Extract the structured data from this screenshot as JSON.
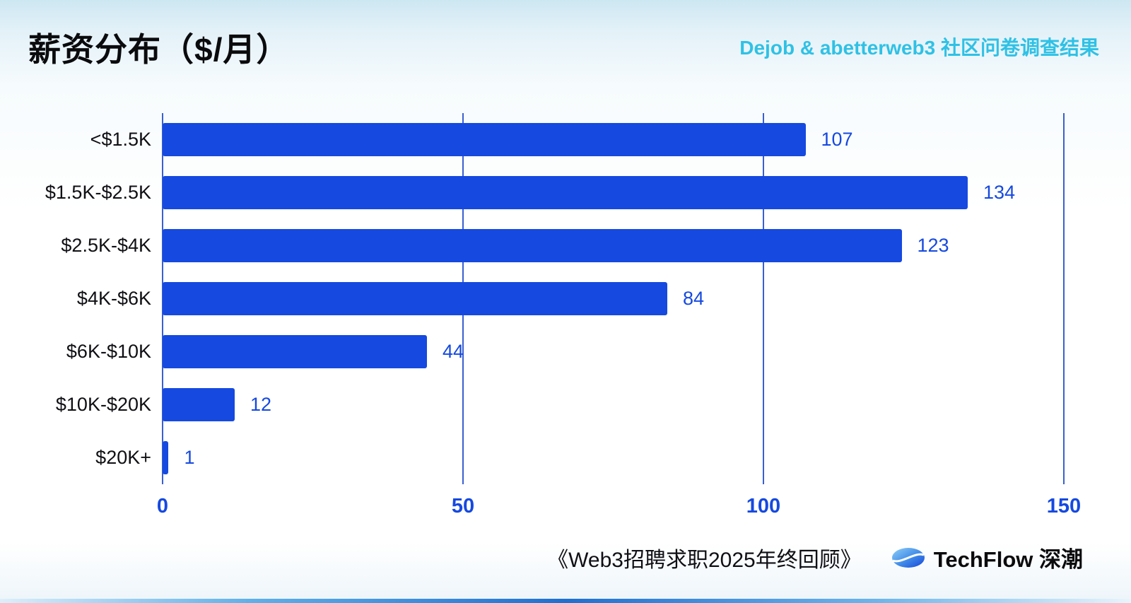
{
  "header": {
    "title": "薪资分布（$/月）",
    "subtitle": "Dejob & abetterweb3 社区问卷调查结果"
  },
  "footer": {
    "source": "《Web3招聘求职2025年终回顾》",
    "brand": "TechFlow 深潮"
  },
  "chart_data": {
    "type": "bar",
    "orientation": "horizontal",
    "title": "薪资分布（$/月）",
    "categories": [
      "<$1.5K",
      "$1.5K-$2.5K",
      "$2.5K-$4K",
      "$4K-$6K",
      "$6K-$10K",
      "$10K-$20K",
      "$20K+"
    ],
    "values": [
      107,
      134,
      123,
      84,
      44,
      12,
      1
    ],
    "xlabel": "",
    "ylabel": "",
    "xlim": [
      0,
      150
    ],
    "x_ticks": [
      0,
      50,
      100,
      150
    ],
    "grid": true,
    "legend": false,
    "bar_color": "#1549e0",
    "value_label_color": "#1549e0",
    "gridline_color": "#3a60d0"
  },
  "colors": {
    "accent_cyan": "#2fc1e5",
    "bar_blue": "#1549e0"
  }
}
